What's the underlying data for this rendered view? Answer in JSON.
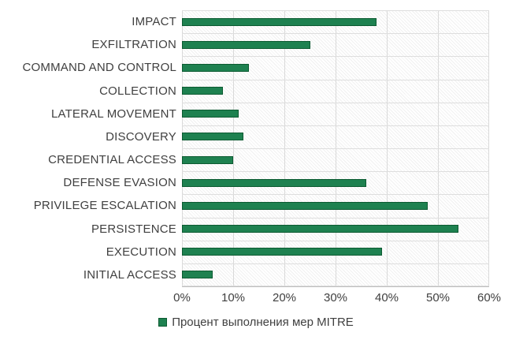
{
  "chart_data": {
    "type": "bar",
    "orientation": "horizontal",
    "title": "",
    "categories": [
      "IMPACT",
      "EXFILTRATION",
      "COMMAND AND CONTROL",
      "COLLECTION",
      "LATERAL MOVEMENT",
      "DISCOVERY",
      "CREDENTIAL ACCESS",
      "DEFENSE EVASION",
      "PRIVILEGE ESCALATION",
      "PERSISTENCE",
      "EXECUTION",
      "INITIAL ACCESS"
    ],
    "values": [
      38,
      25,
      13,
      8,
      11,
      12,
      10,
      36,
      48,
      54,
      39,
      6
    ],
    "value_unit": "%",
    "xlim": [
      0,
      60
    ],
    "x_ticks": [
      "0%",
      "10%",
      "20%",
      "30%",
      "40%",
      "50%",
      "60%"
    ],
    "x_tick_values": [
      0,
      10,
      20,
      30,
      40,
      50,
      60
    ],
    "grid": true,
    "legend_position": "bottom",
    "legend": "Процент выполнения мер MITRE",
    "colors": {
      "bar_fill": "#1e8150",
      "bar_border": "#0d5b32",
      "gridline": "#d9d9d9",
      "axis_line": "#bfbfbf",
      "text": "#404040",
      "plot_background_pattern": "light-diagonal-hatch"
    }
  }
}
